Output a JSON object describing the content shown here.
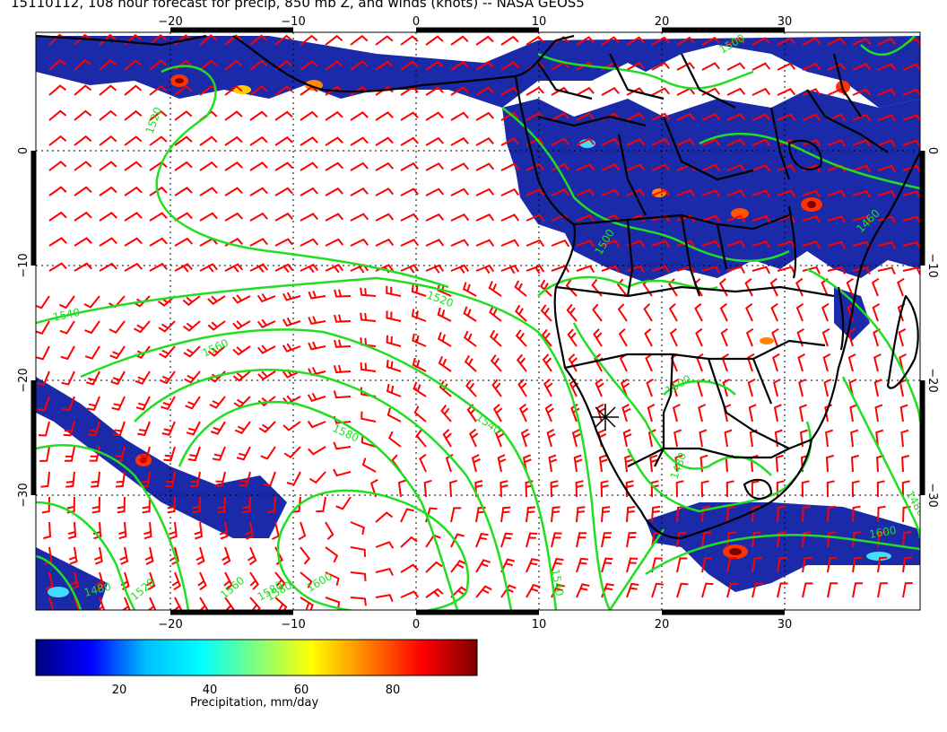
{
  "title": "15110112, 108 hour forecast for precip, 850 mb Z, and winds (knots) -- NASA GEOS5",
  "map": {
    "lon_range": [
      -31,
      40
    ],
    "lat_range": [
      -41,
      10
    ],
    "lon_ticks": [
      "−20",
      "−10",
      "0",
      "10",
      "20",
      "30"
    ],
    "lat_ticks": [
      "0",
      "−10",
      "−20",
      "−30"
    ],
    "contour_labels": [
      "1520",
      "1540",
      "1560",
      "1580",
      "1600",
      "1540",
      "1520",
      "1500",
      "1480",
      "1580",
      "1560",
      "1520",
      "1460",
      "1480",
      "1500",
      "1480",
      "1580",
      "1600",
      "1500",
      "1540"
    ],
    "colors": {
      "precip_fill": "#1a2aa8",
      "contour": "#22dd22",
      "wind_barb": "#ff0000",
      "coastline": "#000000",
      "grid": "#000000"
    },
    "gridlines": "dotted"
  },
  "colorbar": {
    "label": "Precipitation, mm/day",
    "tick_labels": [
      "20",
      "40",
      "60",
      "80"
    ],
    "range": [
      0,
      100
    ],
    "colors": [
      "#000080",
      "#0000ff",
      "#00bfff",
      "#00ffff",
      "#7fff7f",
      "#ffff00",
      "#ff8000",
      "#ff0000",
      "#800000"
    ]
  }
}
